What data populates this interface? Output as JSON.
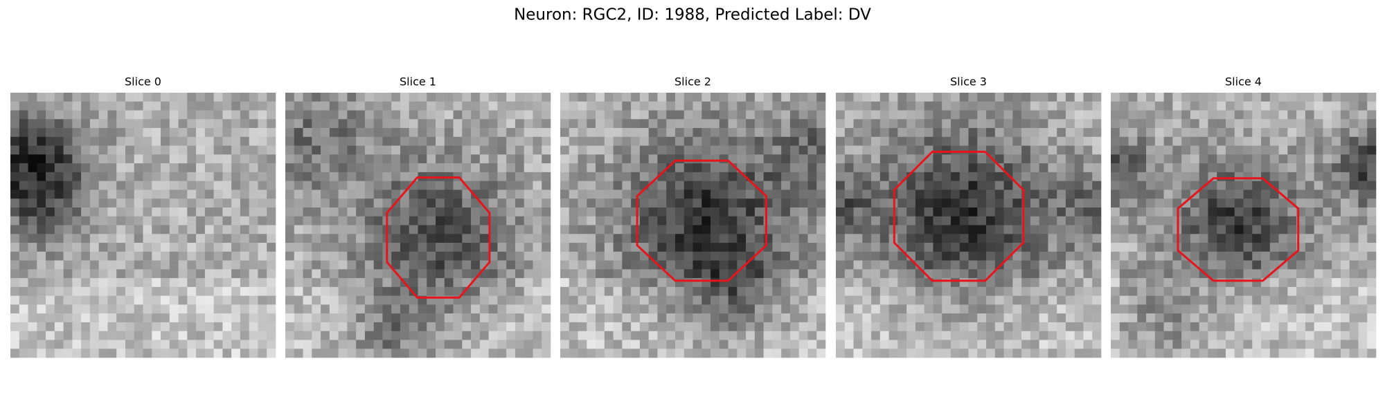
{
  "title": "Neuron: RGC2, ID: 1988, Predicted Label: DV",
  "panels": [
    {
      "title": "Slice 0"
    },
    {
      "title": "Slice 1"
    },
    {
      "title": "Slice 2"
    },
    {
      "title": "Slice 3"
    },
    {
      "title": "Slice 4"
    }
  ]
}
